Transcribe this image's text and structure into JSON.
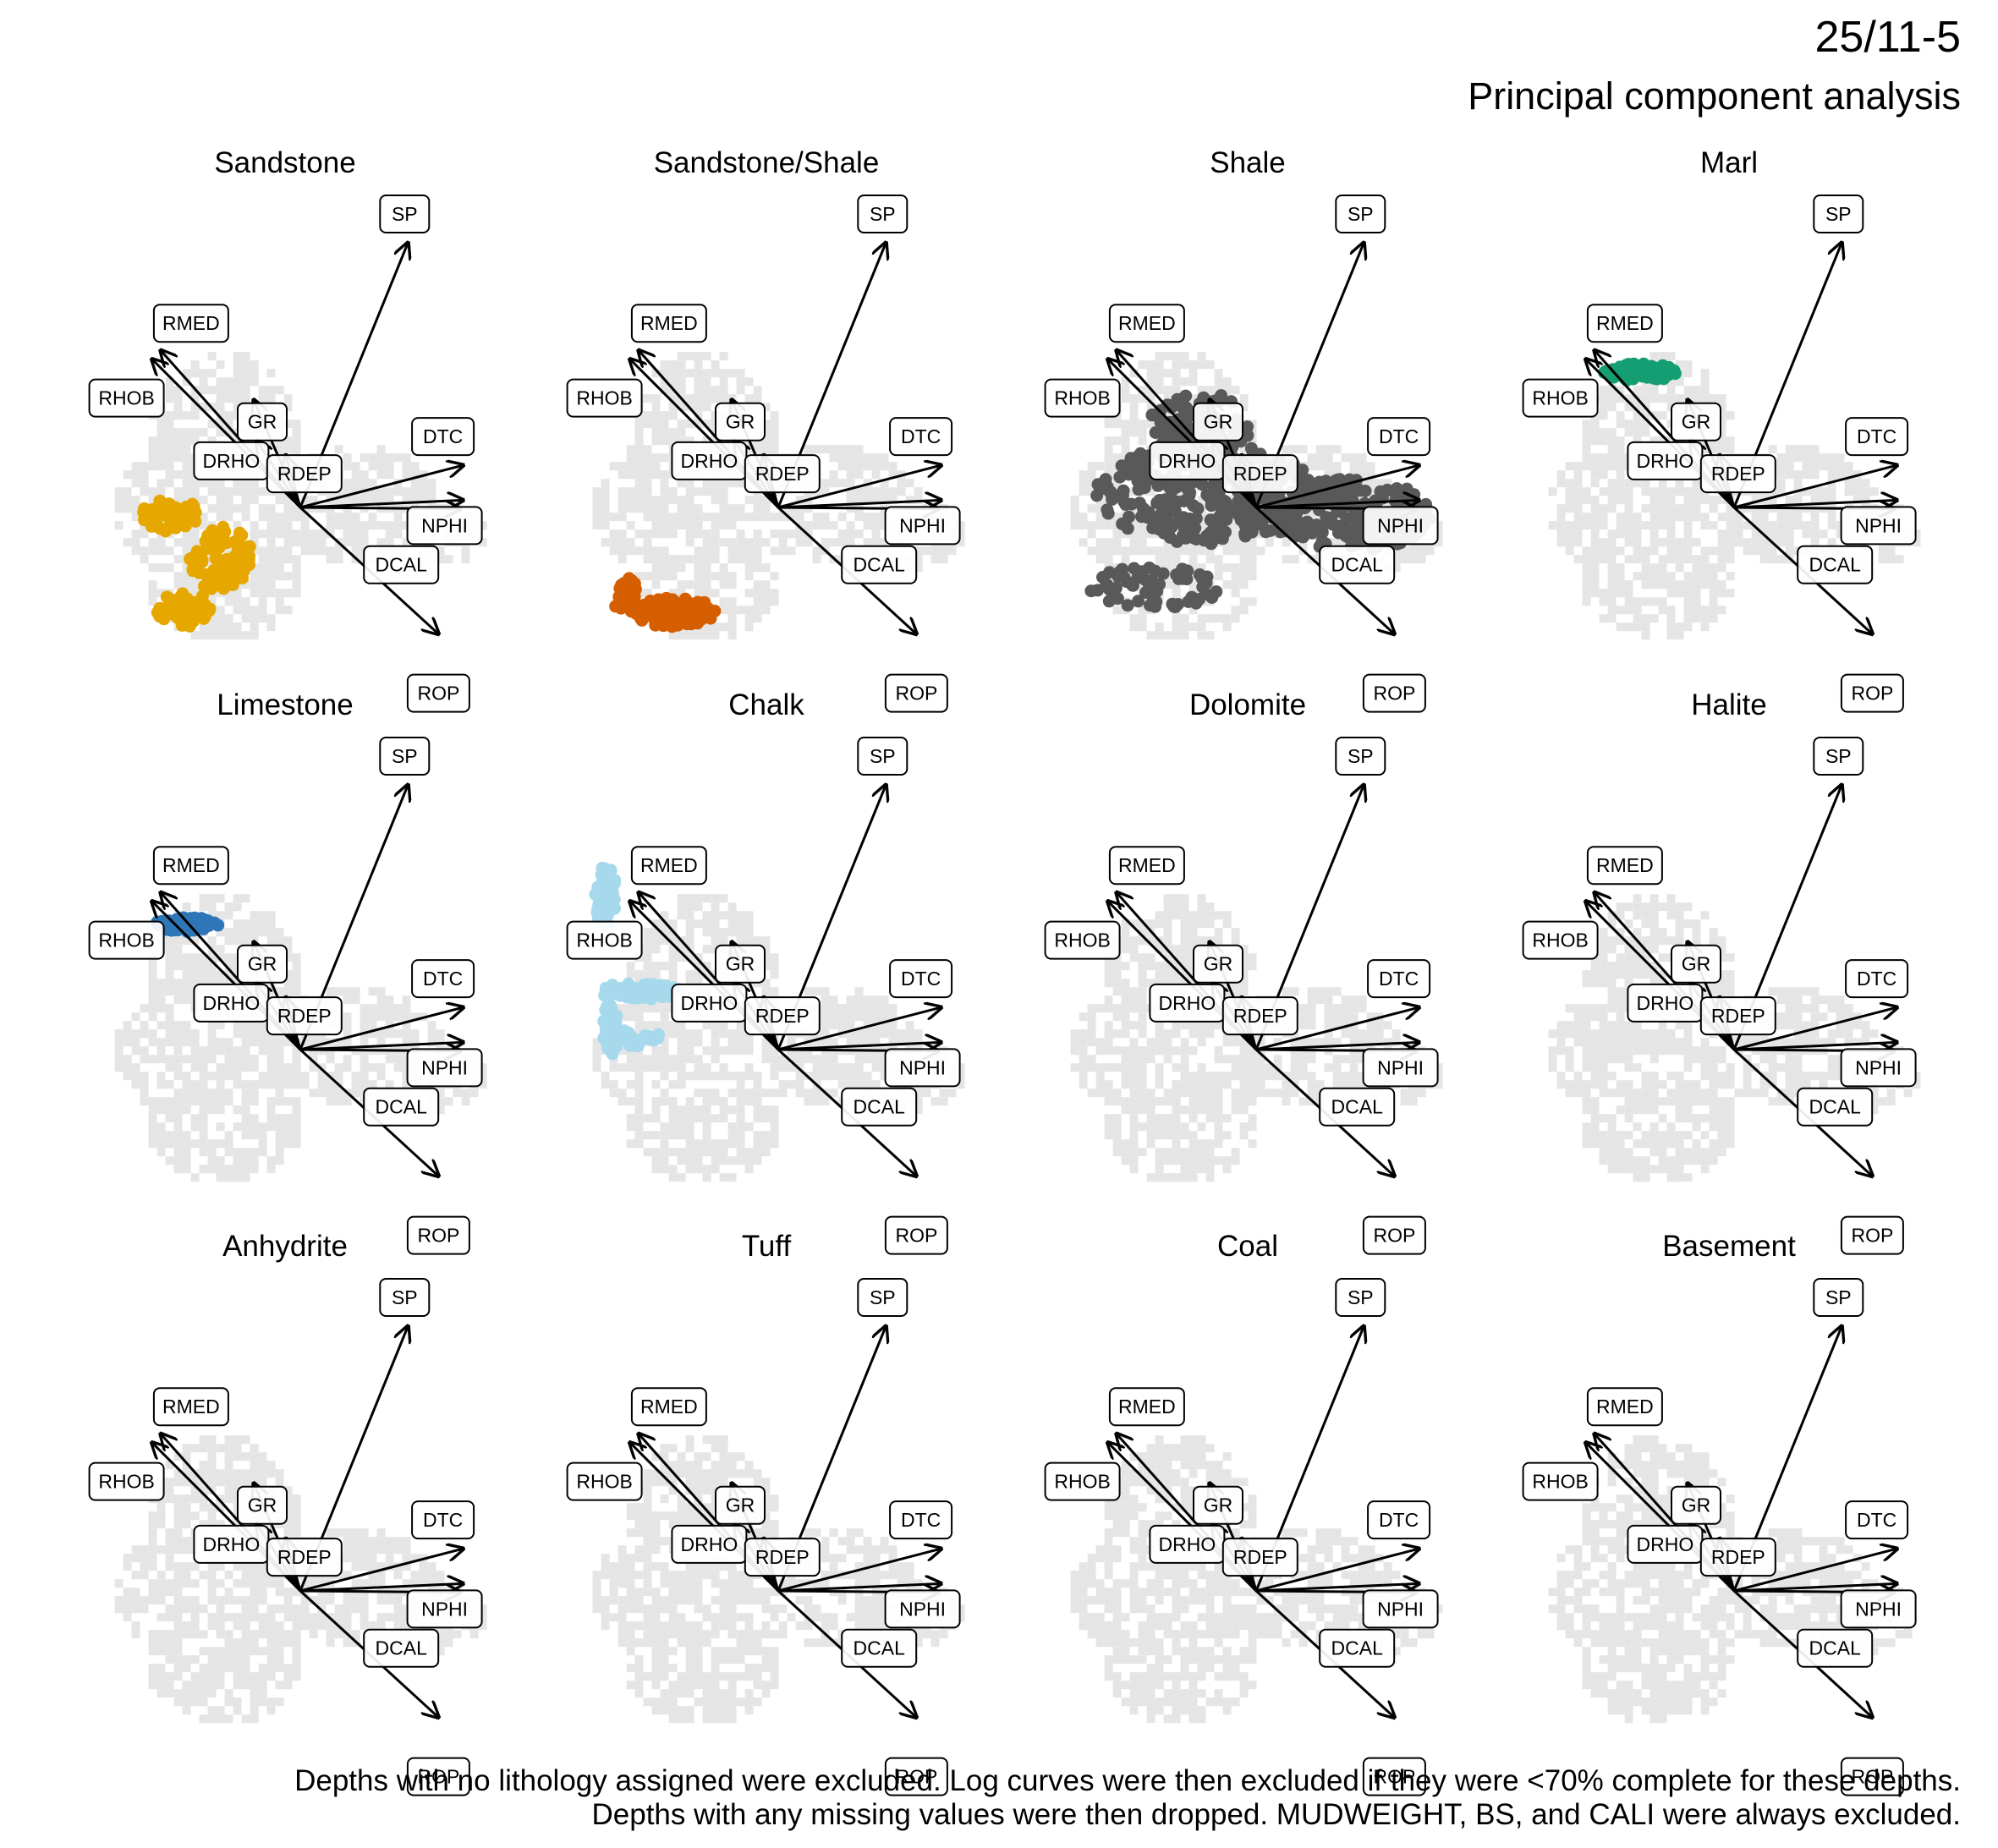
{
  "title": "25/11-5",
  "subtitle": "Principal component analysis",
  "notes": [
    "Depths with no lithology assigned were excluded. Log curves were then excluded if they were <70% complete for these depths.",
    "Depths with any missing values were then dropped. MUDWEIGHT, BS, and CALI were always excluded."
  ],
  "chart_data": {
    "type": "scatter",
    "description_of_axes": "PCA biplot; axes not shown",
    "background_color": "#e5e5e5",
    "loadings": [
      {
        "name": "SP",
        "x": 0.74,
        "y": 1.82
      },
      {
        "name": "RMED",
        "x": -0.96,
        "y": 1.08
      },
      {
        "name": "RHOB",
        "x": -1.02,
        "y": 1.02
      },
      {
        "name": "GR",
        "x": -0.32,
        "y": 0.74
      },
      {
        "name": "DRHO",
        "x": -0.3,
        "y": 0.46
      },
      {
        "name": "RDEP",
        "x": -0.1,
        "y": 0.36
      },
      {
        "name": "DTC",
        "x": 1.12,
        "y": 0.29
      },
      {
        "name": "NPHI",
        "x": 1.12,
        "y": 0.05
      },
      {
        "name": "DCAL",
        "x": 1.1,
        "y": -0.01
      },
      {
        "name": "ROP",
        "x": 0.95,
        "y": -0.87
      }
    ],
    "facets": [
      {
        "name": "Sandstone",
        "color": "#e6a800",
        "clusters": [
          {
            "cx": -0.9,
            "cy": -0.05,
            "rx": 0.2,
            "ry": 0.12,
            "n": 40
          },
          {
            "cx": -0.55,
            "cy": -0.35,
            "rx": 0.22,
            "ry": 0.22,
            "n": 90
          },
          {
            "cx": -0.8,
            "cy": -0.7,
            "rx": 0.2,
            "ry": 0.12,
            "n": 50
          }
        ]
      },
      {
        "name": "Sandstone/Shale",
        "color": "#d55e00",
        "clusters": [
          {
            "cx": -1.05,
            "cy": -0.6,
            "rx": 0.1,
            "ry": 0.12,
            "n": 25
          },
          {
            "cx": -0.72,
            "cy": -0.72,
            "rx": 0.3,
            "ry": 0.1,
            "n": 80
          }
        ]
      },
      {
        "name": "Shale",
        "color": "#595959",
        "clusters": [
          {
            "cx": -0.35,
            "cy": 0.1,
            "rx": 0.75,
            "ry": 0.35,
            "n": 320
          },
          {
            "cx": 0.65,
            "cy": -0.05,
            "rx": 0.55,
            "ry": 0.25,
            "n": 200
          },
          {
            "cx": -0.4,
            "cy": 0.55,
            "rx": 0.35,
            "ry": 0.25,
            "n": 100
          },
          {
            "cx": -0.7,
            "cy": -0.55,
            "rx": 0.45,
            "ry": 0.15,
            "n": 60
          }
        ]
      },
      {
        "name": "Marl",
        "color": "#169e73",
        "clusters": [
          {
            "cx": -0.65,
            "cy": 0.93,
            "rx": 0.25,
            "ry": 0.06,
            "n": 60
          }
        ]
      },
      {
        "name": "Limestone",
        "color": "#2f76b8",
        "clusters": [
          {
            "cx": -0.78,
            "cy": 0.86,
            "rx": 0.22,
            "ry": 0.05,
            "n": 50
          }
        ]
      },
      {
        "name": "Chalk",
        "color": "#a6d9ec",
        "clusters": [
          {
            "cx": -1.18,
            "cy": 1.05,
            "rx": 0.08,
            "ry": 0.22,
            "n": 40
          },
          {
            "cx": -0.95,
            "cy": 0.4,
            "rx": 0.28,
            "ry": 0.06,
            "n": 60
          },
          {
            "cx": -1.15,
            "cy": 0.15,
            "rx": 0.06,
            "ry": 0.2,
            "n": 30
          },
          {
            "cx": -1.0,
            "cy": 0.08,
            "rx": 0.2,
            "ry": 0.06,
            "n": 30
          }
        ]
      },
      {
        "name": "Dolomite",
        "color": "#999999",
        "clusters": []
      },
      {
        "name": "Halite",
        "color": "#999999",
        "clusters": []
      },
      {
        "name": "Anhydrite",
        "color": "#999999",
        "clusters": []
      },
      {
        "name": "Tuff",
        "color": "#999999",
        "clusters": []
      },
      {
        "name": "Coal",
        "color": "#999999",
        "clusters": []
      },
      {
        "name": "Basement",
        "color": "#999999",
        "clusters": []
      }
    ]
  }
}
